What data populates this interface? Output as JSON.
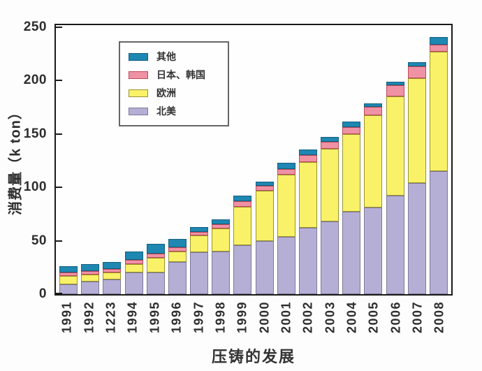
{
  "axes": {
    "y_ticks": [
      0,
      50,
      100,
      150,
      200,
      250
    ]
  },
  "chart_data": {
    "type": "bar",
    "stacked": true,
    "title": "",
    "xlabel": "压铸的发展",
    "ylabel": "消费量（k ton）",
    "ylim": [
      0,
      252
    ],
    "grid": false,
    "legend_position": "upper-left-inside",
    "categories": [
      "1991",
      "1992",
      "1223",
      "1994",
      "1995",
      "1996",
      "1997",
      "1998",
      "1999",
      "2000",
      "2001",
      "2002",
      "2003",
      "2004",
      "2005",
      "2006",
      "2007",
      "2008"
    ],
    "series": [
      {
        "name": "北美",
        "key": "north-america",
        "color": "#b6afd5",
        "border": "#7d7899",
        "values": [
          9.5,
          12,
          14,
          20,
          20,
          30,
          39,
          40,
          46,
          50,
          54,
          62,
          68,
          77,
          81,
          92,
          104,
          115
        ]
      },
      {
        "name": "欧洲",
        "key": "europe",
        "color": "#f9f168",
        "border": "#9a942e",
        "values": [
          7.5,
          6.5,
          6,
          8,
          14,
          10,
          16,
          21.5,
          36,
          47,
          58,
          62,
          68,
          73,
          86.5,
          93,
          98,
          112
        ]
      },
      {
        "name": "日本、韩国",
        "key": "japan-korea",
        "color": "#ee92a4",
        "border": "#c04a5c",
        "values": [
          3,
          3,
          3.5,
          4,
          4,
          4,
          3.5,
          4,
          5,
          4.5,
          5,
          6.5,
          6.5,
          6.5,
          8,
          10.5,
          11.5,
          7
        ]
      },
      {
        "name": "其他",
        "key": "others",
        "color": "#1e87b2",
        "border": "#135e7e",
        "values": [
          6.5,
          6.5,
          6.5,
          8,
          9,
          8,
          4.5,
          4.5,
          5.5,
          4,
          6,
          5,
          5,
          5,
          3,
          3.5,
          4,
          7
        ]
      }
    ]
  }
}
